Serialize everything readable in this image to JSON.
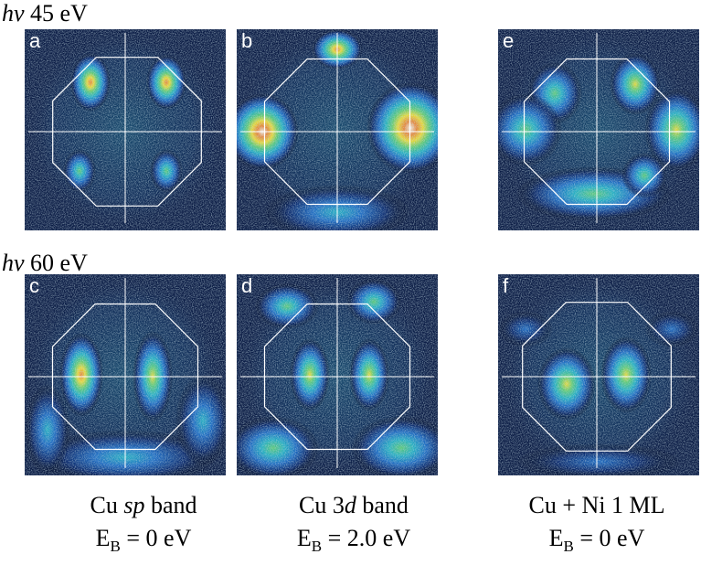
{
  "rows": [
    {
      "label_prefix": "hν",
      "label_value": "45 eV"
    },
    {
      "label_prefix": "hν",
      "label_value": "60 eV"
    }
  ],
  "panels": [
    {
      "id": "a",
      "label": "a"
    },
    {
      "id": "b",
      "label": "b"
    },
    {
      "id": "e",
      "label": "e"
    },
    {
      "id": "c",
      "label": "c"
    },
    {
      "id": "d",
      "label": "d"
    },
    {
      "id": "f",
      "label": "f"
    }
  ],
  "captions": [
    {
      "pre": "Cu ",
      "em": "sp",
      "post": " band",
      "eb_label": "E",
      "eb_sub": "B",
      "eb_value": " = 0 eV"
    },
    {
      "pre": "Cu 3",
      "em": "d",
      "post": " band",
      "eb_label": "E",
      "eb_sub": "B",
      "eb_value": " = 2.0 eV"
    },
    {
      "pre": "Cu + Ni 1 ML",
      "em": "",
      "post": "",
      "eb_label": "E",
      "eb_sub": "B",
      "eb_value": " = 0 eV"
    }
  ],
  "colors": {
    "background_dark": "#070b1e",
    "overlay_lines": "#ffffff",
    "colormap": [
      "#000614",
      "#0b2a6e",
      "#1f6fc8",
      "#26b5c8",
      "#5fd07a",
      "#f2e23a",
      "#f08a3a",
      "#fff5e8"
    ]
  }
}
